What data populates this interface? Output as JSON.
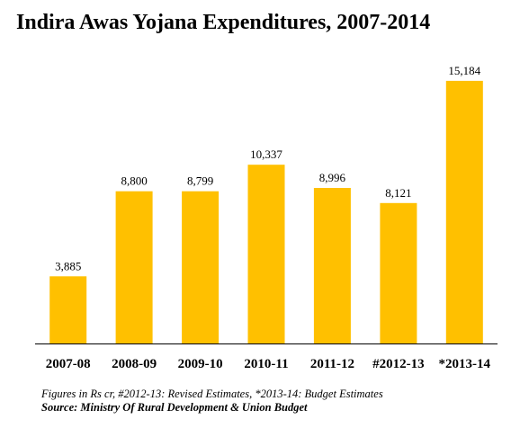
{
  "chart_data": {
    "type": "bar",
    "title": "Indira Awas Yojana Expenditures, 2007-2014",
    "categories": [
      "2007-08",
      "2008-09",
      "2009-10",
      "2010-11",
      "2011-12",
      "#2012-13",
      "*2013-14"
    ],
    "values": [
      3885,
      8800,
      8799,
      10337,
      8996,
      8121,
      15184
    ],
    "value_labels": [
      "3,885",
      "8,800",
      "8,799",
      "10,337",
      "8,996",
      "8,121",
      "15,184"
    ],
    "bar_color": "#FFC000",
    "axis_color": "#000000",
    "ylim": [
      0,
      17000
    ],
    "grid": false,
    "legend": "none",
    "xlabel": "",
    "ylabel": ""
  },
  "notes": {
    "footnote": "Figures in Rs cr, #2012-13: Revised Estimates, *2013-14: Budget Estimates",
    "source": "Source: Ministry Of Rural Development & Union Budget"
  }
}
